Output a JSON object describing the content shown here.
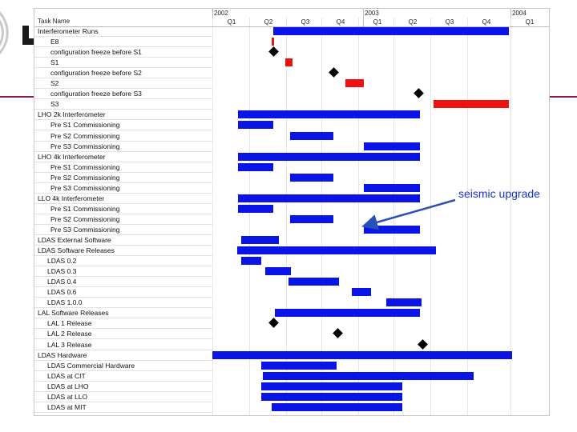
{
  "header": {
    "task_name_label": "Task Name",
    "years": [
      "2002",
      "2003",
      "2004"
    ],
    "quarters": [
      "Q1",
      "Q2",
      "Q3",
      "Q4",
      "Q1",
      "Q2",
      "Q3",
      "Q4",
      "Q1"
    ]
  },
  "colors": {
    "bar_blue": "#0a14e6",
    "bar_red": "#ee1111",
    "band": "#8b1a5e",
    "annotation": "#1736c8"
  },
  "tasks": [
    "Interferometer Runs",
    "E8",
    "configuration freeze before S1",
    "S1",
    "configuration freeze before S2",
    "S2",
    "configuration freeze before S3",
    "S3",
    "LHO 2k Interferometer",
    "Pre S1 Commissioning",
    "Pre S2 Commissioning",
    "Pre S3 Commissioning",
    "LHO 4k Interferometer",
    "Pre S1 Commissioning",
    "Pre S2 Commissioning",
    "Pre S3 Commissioning",
    "LLO 4k Interferometer",
    "Pre S1 Commissioning",
    "Pre S2 Commissioning",
    "Pre S3 Commissioning",
    "LDAS External Software",
    "LDAS Software Releases",
    "LDAS 0.2",
    "LDAS 0.3",
    "LDAS 0.4",
    "LDAS 0.6",
    "LDAS 1.0.0",
    "LAL Software Releases",
    "LAL 1 Release",
    "LAL 2 Release",
    "LAL 3 Release",
    "LDAS Hardware",
    "LDAS Commercial Hardware",
    "LDAS at CIT",
    "LDAS at LHO",
    "LDAS at LLO",
    "LDAS at MIT"
  ],
  "annotation": {
    "text": "seismic upgrade"
  }
}
